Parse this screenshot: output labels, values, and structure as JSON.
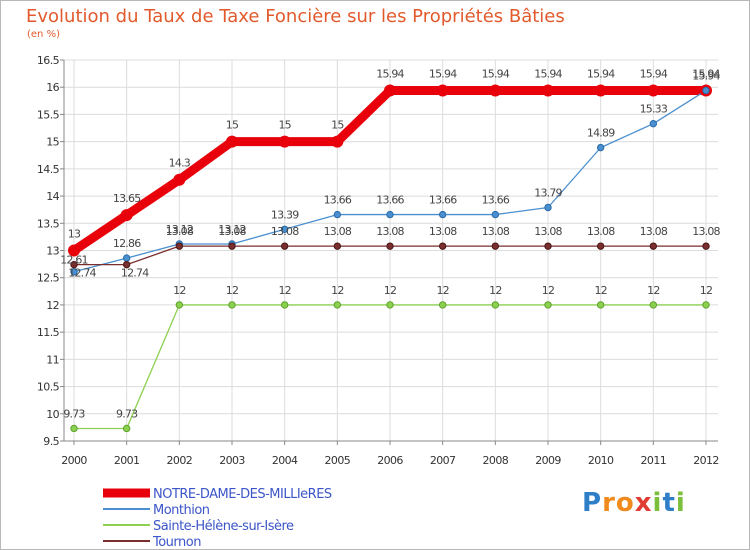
{
  "title": "Evolution du Taux de Taxe Foncière sur les Propriétés Bâties",
  "unit_label": "(en %)",
  "logo": {
    "text": "Proxiti",
    "letters": [
      "P",
      "r",
      "o",
      "x",
      "i",
      "t",
      "i"
    ],
    "colors": [
      "#2e7fc8",
      "#f08a1c",
      "#f08a1c",
      "#e03c31",
      "#7cbf3a",
      "#2e7fc8",
      "#7cbf3a"
    ]
  },
  "chart_data": {
    "type": "line",
    "title": "Evolution du Taux de Taxe Foncière sur les Propriétés Bâties",
    "ylabel": "(en %)",
    "xlabel": "",
    "categories": [
      "2000",
      "2001",
      "2002",
      "2003",
      "2004",
      "2005",
      "2006",
      "2007",
      "2008",
      "2009",
      "2010",
      "2011",
      "2012"
    ],
    "ylim": [
      9.5,
      16.5
    ],
    "yticks": [
      9.5,
      10,
      10.5,
      11,
      11.5,
      12,
      12.5,
      13,
      13.5,
      14,
      14.5,
      15,
      15.5,
      16,
      16.5
    ],
    "ytick_labels": [
      "9.5",
      "10",
      "10.5",
      "11",
      "11.5",
      "12",
      "12.5",
      "13",
      "13.5",
      "14",
      "14.5",
      "15",
      "15.5",
      "16",
      "16.5"
    ],
    "grid": true,
    "series": [
      {
        "name": "NOTRE-DAME-DES-MILLIeRES",
        "color": "#e8000b",
        "emphasis": true,
        "values": [
          13,
          13.65,
          14.3,
          15,
          15,
          15,
          15.94,
          15.94,
          15.94,
          15.94,
          15.94,
          15.94,
          15.94
        ],
        "labels": [
          "13",
          "13.65",
          "14.3",
          "15",
          "15",
          "15",
          "15.94",
          "15.94",
          "15.94",
          "15.94",
          "15.94",
          "15.94",
          "15.94"
        ]
      },
      {
        "name": "Monthion",
        "color": "#4a8fcf",
        "values": [
          12.61,
          12.86,
          13.12,
          13.12,
          13.39,
          13.66,
          13.66,
          13.66,
          13.66,
          13.79,
          14.89,
          15.33,
          15.94
        ],
        "labels": [
          "12.61",
          "12.86",
          "13.12",
          "13.12",
          "13.39",
          "13.66",
          "13.66",
          "13.66",
          "13.66",
          "13.79",
          "14.89",
          "15.33",
          "15.94"
        ]
      },
      {
        "name": "Sainte-Hélène-sur-Isère",
        "color": "#8cd050",
        "values": [
          9.73,
          9.73,
          12,
          12,
          12,
          12,
          12,
          12,
          12,
          12,
          12,
          12,
          12
        ],
        "labels": [
          "9.73",
          "9.73",
          "12",
          "12",
          "12",
          "12",
          "12",
          "12",
          "12",
          "12",
          "12",
          "12",
          "12"
        ]
      },
      {
        "name": "Tournon",
        "color": "#7a2e2e",
        "values": [
          12.74,
          12.74,
          13.08,
          13.08,
          13.08,
          13.08,
          13.08,
          13.08,
          13.08,
          13.08,
          13.08,
          13.08,
          13.08
        ],
        "labels": [
          "12.74",
          "12.74",
          "13.08",
          "13.08",
          "13.08",
          "13.08",
          "13.08",
          "13.08",
          "13.08",
          "13.08",
          "13.08",
          "13.08",
          "13.08"
        ]
      }
    ],
    "legend_position": "bottom-left"
  }
}
